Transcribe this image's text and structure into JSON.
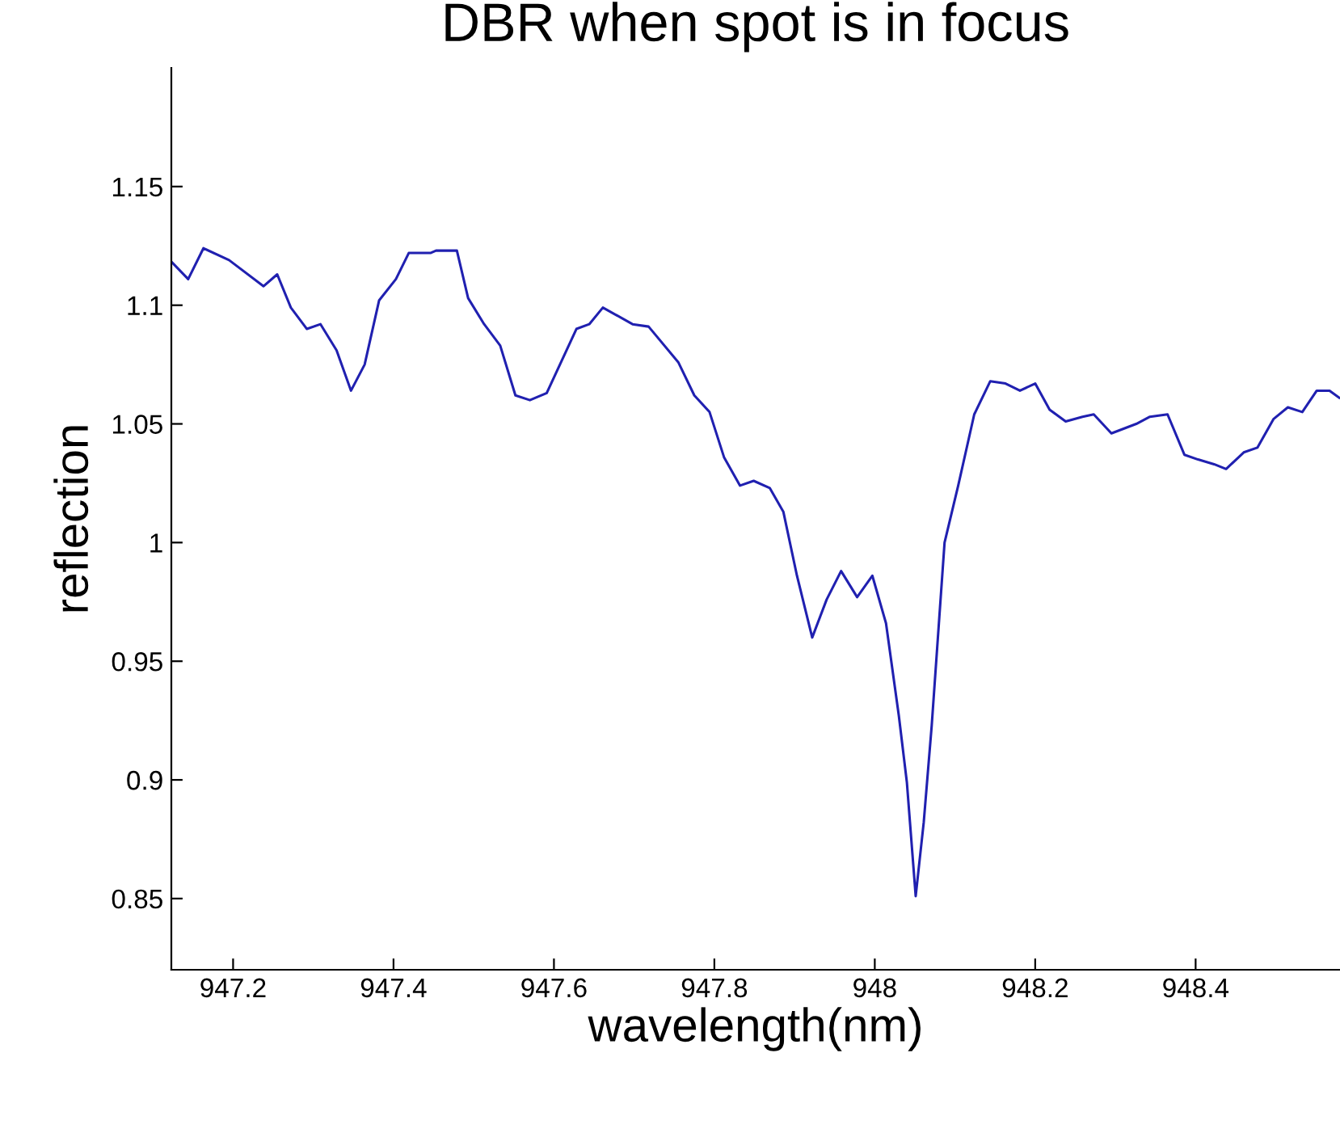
{
  "chart_data": {
    "type": "line",
    "title": "DBR when spot is in focus",
    "xlabel": "wavelength(nm)",
    "ylabel": "reflection",
    "xlim": [
      947.123,
      948.58
    ],
    "ylim": [
      0.82,
      1.2
    ],
    "xticks": [
      947.2,
      947.4,
      947.6,
      947.8,
      948,
      948.2,
      948.4
    ],
    "yticks": [
      0.85,
      0.9,
      0.95,
      1,
      1.05,
      1.1,
      1.15
    ],
    "grid": false,
    "legend": false,
    "marker": "none",
    "line_style": "solid",
    "series": [
      {
        "color": "#2020b0",
        "x": [
          947.124,
          947.144,
          947.163,
          947.195,
          947.238,
          947.255,
          947.272,
          947.292,
          947.309,
          947.329,
          947.347,
          947.364,
          947.382,
          947.403,
          947.419,
          947.446,
          947.453,
          947.479,
          947.493,
          947.513,
          947.533,
          947.552,
          947.57,
          947.591,
          947.628,
          947.644,
          947.661,
          947.698,
          947.718,
          947.755,
          947.775,
          947.794,
          947.812,
          947.832,
          947.849,
          947.869,
          947.886,
          947.903,
          947.922,
          947.94,
          947.958,
          947.978,
          947.997,
          948.014,
          948.03,
          948.04,
          948.051,
          948.061,
          948.071,
          948.087,
          948.104,
          948.124,
          948.144,
          948.163,
          948.181,
          948.2,
          948.218,
          948.238,
          948.259,
          948.273,
          948.295,
          948.326,
          948.343,
          948.365,
          948.386,
          948.403,
          948.423,
          948.438,
          948.46,
          948.477,
          948.497,
          948.515,
          948.533,
          948.551,
          948.567,
          948.579
        ],
        "values": [
          1.118,
          1.111,
          1.124,
          1.119,
          1.108,
          1.113,
          1.099,
          1.09,
          1.092,
          1.081,
          1.064,
          1.075,
          1.102,
          1.111,
          1.122,
          1.122,
          1.123,
          1.123,
          1.103,
          1.092,
          1.083,
          1.062,
          1.06,
          1.063,
          1.09,
          1.092,
          1.099,
          1.092,
          1.091,
          1.076,
          1.062,
          1.055,
          1.036,
          1.024,
          1.026,
          1.023,
          1.013,
          0.986,
          0.96,
          0.976,
          0.988,
          0.977,
          0.986,
          0.966,
          0.927,
          0.899,
          0.851,
          0.882,
          0.923,
          1.0,
          1.024,
          1.054,
          1.068,
          1.067,
          1.064,
          1.067,
          1.056,
          1.051,
          1.053,
          1.054,
          1.046,
          1.05,
          1.053,
          1.054,
          1.037,
          1.035,
          1.033,
          1.031,
          1.038,
          1.04,
          1.052,
          1.057,
          1.055,
          1.064,
          1.064,
          1.061
        ]
      }
    ]
  }
}
